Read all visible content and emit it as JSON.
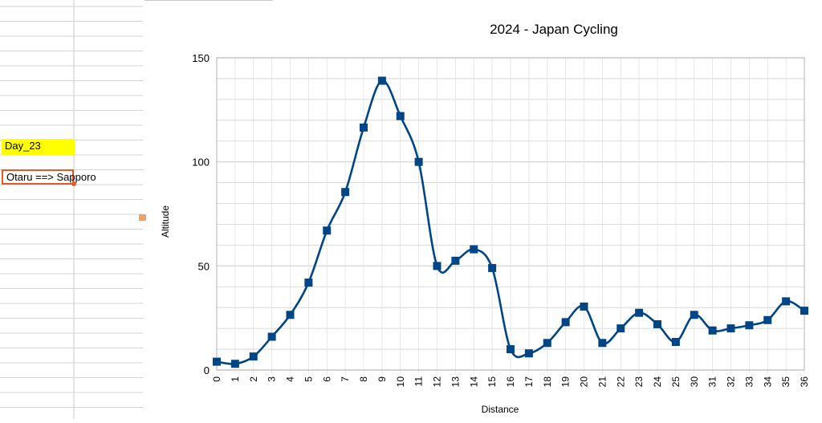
{
  "spreadsheet": {
    "cells": [
      {
        "text": "Day_23",
        "highlight": "#ffff00"
      },
      {
        "text": "Otaru ==> Sapporo",
        "border": "#e4582a"
      }
    ]
  },
  "chart_data": {
    "type": "line",
    "title": "2024 - Japan Cycling",
    "xlabel": "Distance",
    "ylabel": "Altitude",
    "ylim": [
      0,
      150
    ],
    "yticks": [
      0,
      50,
      100,
      150
    ],
    "grid": true,
    "legend": "none",
    "line_color": "#004586",
    "smooth": true,
    "categories": [
      "0",
      "1",
      "2",
      "3",
      "4",
      "5",
      "6",
      "7",
      "8",
      "9",
      "10",
      "11",
      "12",
      "13",
      "14",
      "15",
      "16",
      "17",
      "18",
      "19",
      "20",
      "21",
      "22",
      "23",
      "24",
      "25",
      "30",
      "31",
      "32",
      "33",
      "34",
      "35",
      "36"
    ],
    "series": [
      {
        "values": [
          4,
          3,
          6.5,
          16,
          26.5,
          42,
          67,
          85.5,
          116.5,
          139,
          122,
          100,
          50,
          52.5,
          58,
          49,
          10,
          8,
          13,
          23,
          30.5,
          13,
          20,
          27.5,
          22,
          13.5,
          26.5,
          19,
          20,
          21.5,
          24,
          33,
          28.5
        ]
      }
    ]
  }
}
